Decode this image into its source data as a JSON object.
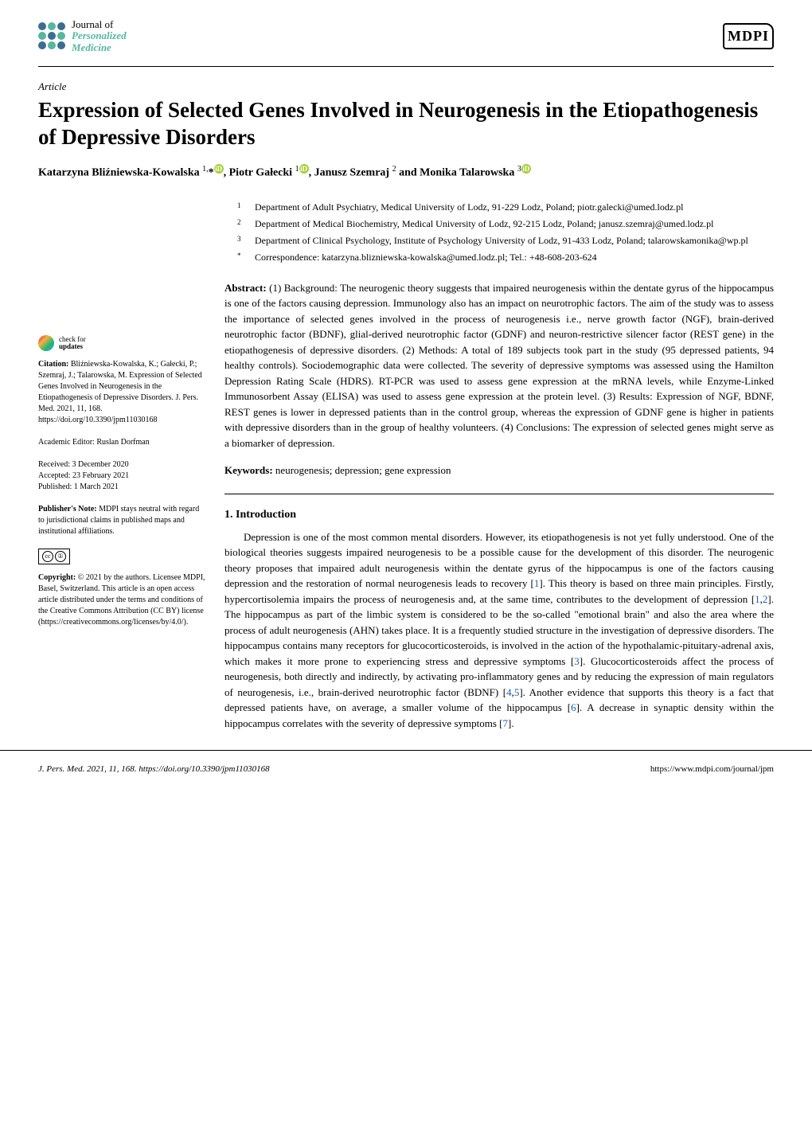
{
  "journal": {
    "line1": "Journal of",
    "line2": "Personalized",
    "line3": "Medicine",
    "dot_colors": [
      "#3b6e8f",
      "#56b6a0",
      "#3b6e8f",
      "#56b6a0",
      "#3b6e8f",
      "#56b6a0",
      "#3b6e8f",
      "#56b6a0",
      "#3b6e8f"
    ]
  },
  "publisher_logo": "MDPI",
  "article_type": "Article",
  "title": "Expression of Selected Genes Involved in Neurogenesis in the Etiopathogenesis of Depressive Disorders",
  "authors_html": "Katarzyna Bliźniewska-Kowalska <sup>1,</sup>* , Piotr Gałecki <sup>1</sup> , Janusz Szemraj <sup>2</sup> and Monika Talarowska <sup>3</sup>",
  "affiliations": [
    {
      "num": "1",
      "text": "Department of Adult Psychiatry, Medical University of Lodz, 91-229 Lodz, Poland; piotr.galecki@umed.lodz.pl"
    },
    {
      "num": "2",
      "text": "Department of Medical Biochemistry, Medical University of Lodz, 92-215 Lodz, Poland; janusz.szemraj@umed.lodz.pl"
    },
    {
      "num": "3",
      "text": "Department of Clinical Psychology, Institute of Psychology University of Lodz, 91-433 Lodz, Poland; talarowskamonika@wp.pl"
    },
    {
      "num": "*",
      "text": "Correspondence: katarzyna.blizniewska-kowalska@umed.lodz.pl; Tel.: +48-608-203-624"
    }
  ],
  "abstract_label": "Abstract:",
  "abstract": "(1) Background: The neurogenic theory suggests that impaired neurogenesis within the dentate gyrus of the hippocampus is one of the factors causing depression. Immunology also has an impact on neurotrophic factors. The aim of the study was to assess the importance of selected genes involved in the process of neurogenesis i.e., nerve growth factor (NGF), brain-derived neurotrophic factor (BDNF), glial-derived neurotrophic factor (GDNF) and neuron-restrictive silencer factor (REST gene) in the etiopathogenesis of depressive disorders. (2) Methods: A total of 189 subjects took part in the study (95 depressed patients, 94 healthy controls). Sociodemographic data were collected. The severity of depressive symptoms was assessed using the Hamilton Depression Rating Scale (HDRS). RT-PCR was used to assess gene expression at the mRNA levels, while Enzyme-Linked Immunosorbent Assay (ELISA) was used to assess gene expression at the protein level. (3) Results: Expression of NGF, BDNF, REST genes is lower in depressed patients than in the control group, whereas the expression of GDNF gene is higher in patients with depressive disorders than in the group of healthy volunteers. (4) Conclusions: The expression of selected genes might serve as a biomarker of depression.",
  "keywords_label": "Keywords:",
  "keywords": "neurogenesis; depression; gene expression",
  "section1_heading": "1. Introduction",
  "body_paragraph": "Depression is one of the most common mental disorders. However, its etiopathogenesis is not yet fully understood. One of the biological theories suggests impaired neurogenesis to be a possible cause for the development of this disorder. The neurogenic theory proposes that impaired adult neurogenesis within the dentate gyrus of the hippocampus is one of the factors causing depression and the restoration of normal neurogenesis leads to recovery [1]. This theory is based on three main principles. Firstly, hypercortisolemia impairs the process of neurogenesis and, at the same time, contributes to the development of depression [1,2]. The hippocampus as part of the limbic system is considered to be the so-called \"emotional brain\" and also the area where the process of adult neurogenesis (AHN) takes place. It is a frequently studied structure in the investigation of depressive disorders. The hippocampus contains many receptors for glucocorticosteroids, is involved in the action of the hypothalamic-pituitary-adrenal axis, which makes it more prone to experiencing stress and depressive symptoms [3]. Glucocorticosteroids affect the process of neurogenesis, both directly and indirectly, by activating pro-inflammatory genes and by reducing the expression of main regulators of neurogenesis, i.e., brain-derived neurotrophic factor (BDNF) [4,5]. Another evidence that supports this theory is a fact that depressed patients have, on average, a smaller volume of the hippocampus [6]. A decrease in synaptic density within the hippocampus correlates with the severity of depressive symptoms [7].",
  "sidebar": {
    "check_for": "check for",
    "updates": "updates",
    "citation_label": "Citation:",
    "citation": "Bliźniewska-Kowalska, K.; Gałecki, P.; Szemraj, J.; Talarowska, M. Expression of Selected Genes Involved in Neurogenesis in the Etiopathogenesis of Depressive Disorders. J. Pers. Med. 2021, 11, 168. https://doi.org/10.3390/jpm11030168",
    "editor_label": "Academic Editor:",
    "editor": "Ruslan Dorfman",
    "received": "Received: 3 December 2020",
    "accepted": "Accepted: 23 February 2021",
    "published": "Published: 1 March 2021",
    "publishers_note_label": "Publisher's Note:",
    "publishers_note": "MDPI stays neutral with regard to jurisdictional claims in published maps and institutional affiliations.",
    "copyright_label": "Copyright:",
    "copyright": "© 2021 by the authors. Licensee MDPI, Basel, Switzerland. This article is an open access article distributed under the terms and conditions of the Creative Commons Attribution (CC BY) license (https://creativecommons.org/licenses/by/4.0/)."
  },
  "footer": {
    "left": "J. Pers. Med. 2021, 11, 168. https://doi.org/10.3390/jpm11030168",
    "right": "https://www.mdpi.com/journal/jpm"
  },
  "colors": {
    "accent": "#56b6a0",
    "ref_link": "#1a5fb4"
  }
}
